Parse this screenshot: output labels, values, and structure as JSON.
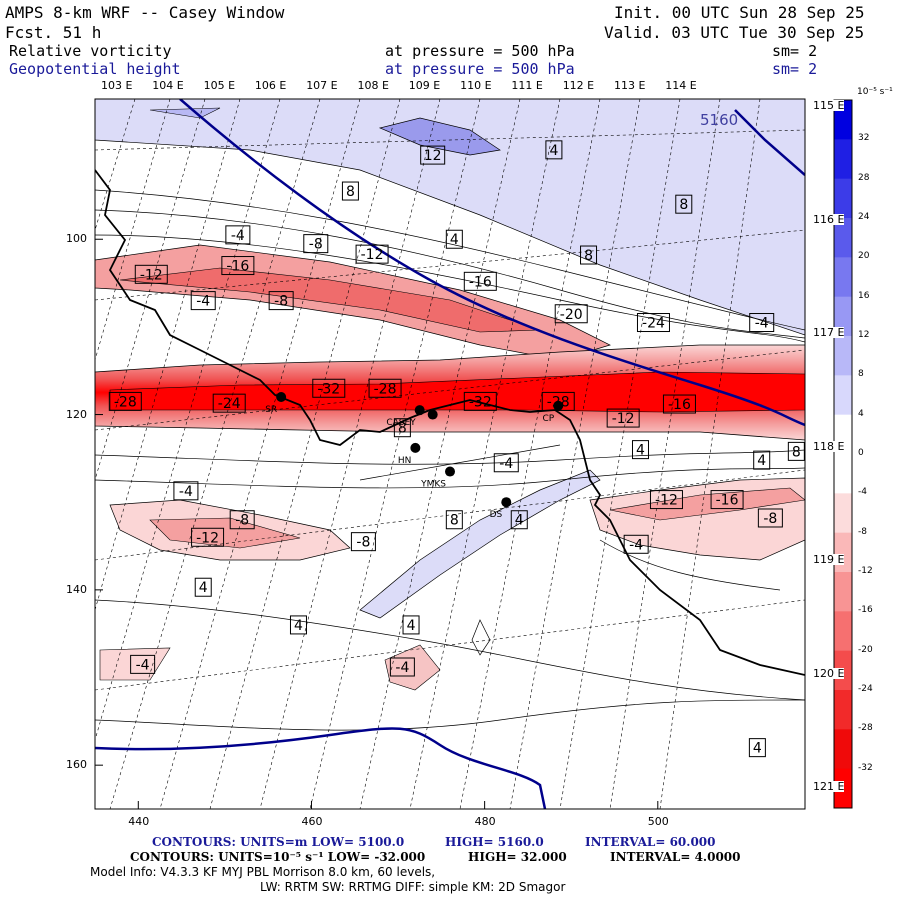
{
  "header": {
    "model_title": "AMPS 8-km WRF -- Casey Window",
    "forecast": "Fcst.     51 h",
    "init": "Init. 00 UTC Sun 28 Sep 25",
    "valid": "Valid. 03 UTC Tue 30 Sep 25",
    "field1_name": "Relative vorticity",
    "field1_level": "at pressure =  500 hPa",
    "field1_sm": "sm= 2",
    "field2_name": "Geopotential height",
    "field2_level": "at pressure =  500 hPa",
    "field2_sm": "sm= 2"
  },
  "longitude_labels_top": [
    "103 E",
    "104 E",
    "105 E",
    "106 E",
    "107 E",
    "108 E",
    "109 E",
    "110 E",
    "111 E",
    "112 E",
    "113 E",
    "114 E"
  ],
  "longitude_labels_right": [
    "115 E",
    "116 E",
    "117 E",
    "118 E",
    "119 E",
    "120 E",
    "121 E"
  ],
  "grid_axes": {
    "x_ticks": [
      "440",
      "460",
      "480",
      "500"
    ],
    "y_ticks": [
      "100",
      "120",
      "140",
      "160"
    ],
    "x_range": [
      435,
      517
    ],
    "y_range": [
      84,
      165
    ]
  },
  "colorbar": {
    "unit": "10⁻⁵ s⁻¹",
    "levels": [
      "32",
      "28",
      "24",
      "20",
      "16",
      "12",
      "8",
      "4",
      "0",
      "-4",
      "-8",
      "-12",
      "-16",
      "-20",
      "-24",
      "-28",
      "-32"
    ],
    "colors": [
      "#0000e0",
      "#1f1fe4",
      "#3c3ce8",
      "#5a5aec",
      "#7878f0",
      "#9898f4",
      "#b8b8f8",
      "#d8d8fc",
      "#ffffff",
      "#ffffff",
      "#fcdcdc",
      "#fab8b8",
      "#f89494",
      "#f67070",
      "#f44c4c",
      "#f22a2a",
      "#f00a0a",
      "#ff0000"
    ]
  },
  "stations": [
    {
      "code": "SR",
      "x": 456.5,
      "y": 118.0
    },
    {
      "code": "CASEY",
      "x": 472.5,
      "y": 119.5
    },
    {
      "code": "",
      "x": 474.0,
      "y": 120.0
    },
    {
      "code": "CP",
      "x": 488.5,
      "y": 119.0
    },
    {
      "code": "HN",
      "x": 472.0,
      "y": 123.8
    },
    {
      "code": "YMKS",
      "x": 476.0,
      "y": 126.5
    },
    {
      "code": "DS",
      "x": 482.5,
      "y": 130.0
    }
  ],
  "contour_labels": [
    {
      "t": "12",
      "x": 474.0,
      "y": 90.4
    },
    {
      "t": "4",
      "x": 488.0,
      "y": 89.8
    },
    {
      "t": "8",
      "x": 464.5,
      "y": 94.5
    },
    {
      "t": "8",
      "x": 503.0,
      "y": 96.0
    },
    {
      "t": "-4",
      "x": 451.5,
      "y": 99.5
    },
    {
      "t": "4",
      "x": 476.5,
      "y": 100.0
    },
    {
      "t": "-8",
      "x": 460.5,
      "y": 100.5
    },
    {
      "t": "8",
      "x": 492.0,
      "y": 101.8
    },
    {
      "t": "-12",
      "x": 467.0,
      "y": 101.7
    },
    {
      "t": "-16",
      "x": 451.5,
      "y": 103.0
    },
    {
      "t": "-12",
      "x": 441.5,
      "y": 104.0
    },
    {
      "t": "-16",
      "x": 479.5,
      "y": 104.8
    },
    {
      "t": "-4",
      "x": 447.5,
      "y": 107.0
    },
    {
      "t": "-8",
      "x": 456.5,
      "y": 107.0
    },
    {
      "t": "-20",
      "x": 490.0,
      "y": 108.5
    },
    {
      "t": "-24",
      "x": 499.5,
      "y": 109.5
    },
    {
      "t": "-4",
      "x": 512.0,
      "y": 109.5
    },
    {
      "t": "-32",
      "x": 462.0,
      "y": 117.0
    },
    {
      "t": "-28",
      "x": 468.5,
      "y": 117.0
    },
    {
      "t": "-28",
      "x": 438.5,
      "y": 118.5
    },
    {
      "t": "-24",
      "x": 450.5,
      "y": 118.7
    },
    {
      "t": "-32",
      "x": 479.5,
      "y": 118.5
    },
    {
      "t": "-28",
      "x": 488.5,
      "y": 118.5
    },
    {
      "t": "-16",
      "x": 502.5,
      "y": 118.8
    },
    {
      "t": "-12",
      "x": 496.0,
      "y": 120.4
    },
    {
      "t": "8",
      "x": 470.5,
      "y": 121.5
    },
    {
      "t": "4",
      "x": 498.0,
      "y": 124.0
    },
    {
      "t": "4",
      "x": 512.0,
      "y": 125.2
    },
    {
      "t": "8",
      "x": 516.0,
      "y": 124.2
    },
    {
      "t": "-4",
      "x": 482.5,
      "y": 125.5
    },
    {
      "t": "-4",
      "x": 445.5,
      "y": 128.7
    },
    {
      "t": "-12",
      "x": 501.0,
      "y": 129.7
    },
    {
      "t": "-16",
      "x": 508.0,
      "y": 129.7
    },
    {
      "t": "8",
      "x": 476.5,
      "y": 132.0
    },
    {
      "t": "4",
      "x": 484.0,
      "y": 132.0
    },
    {
      "t": "-8",
      "x": 452.0,
      "y": 132.0
    },
    {
      "t": "-8",
      "x": 513.0,
      "y": 131.8
    },
    {
      "t": "-12",
      "x": 448.0,
      "y": 134.0
    },
    {
      "t": "-8",
      "x": 466.0,
      "y": 134.5
    },
    {
      "t": "-4",
      "x": 497.5,
      "y": 134.8
    },
    {
      "t": "4",
      "x": 447.5,
      "y": 139.7
    },
    {
      "t": "4",
      "x": 458.5,
      "y": 144.0
    },
    {
      "t": "4",
      "x": 471.5,
      "y": 144.0
    },
    {
      "t": "-4",
      "x": 440.5,
      "y": 148.5
    },
    {
      "t": "-4",
      "x": 470.5,
      "y": 148.8
    },
    {
      "t": "4",
      "x": 511.5,
      "y": 158.0
    }
  ],
  "height_label": "5160",
  "footer": {
    "line1_contours": "CONTOURS:  UNITS=m  LOW=  5100.0",
    "line1_high": "HIGH=  5160.0",
    "line1_interval": "INTERVAL=   60.000",
    "line2_contours": "CONTOURS:  UNITS=10⁻⁵ s⁻¹   LOW= -32.000",
    "line2_high": "HIGH=  32.000",
    "line2_interval": "INTERVAL=   4.0000",
    "model_info": "Model Info: V4.3.3   KF      MYJ PBL  Morrison          8.0 km,  60 levels,",
    "physics": "LW: RRTM SW: RRTMG   DIFF: simple KM: 2D Smagor"
  }
}
